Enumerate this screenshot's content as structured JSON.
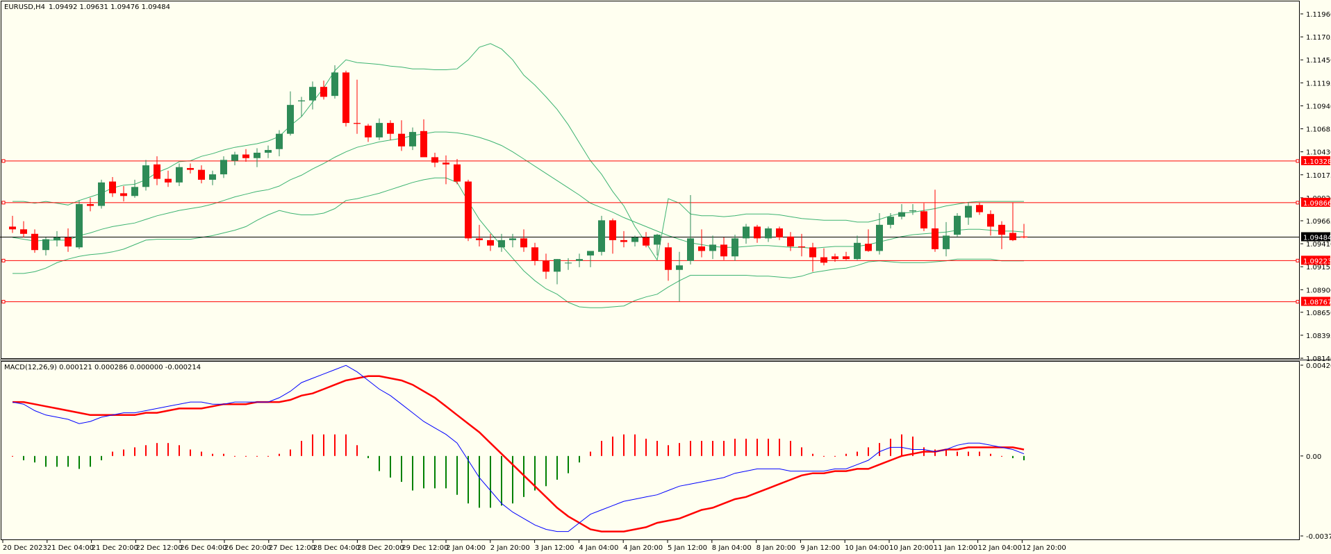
{
  "chart_data": [
    {
      "type": "candlestick",
      "symbol": "EURUSD,H4",
      "title": "EURUSD,H4",
      "ohlc_header": [
        "1.09492",
        "1.09631",
        "1.09476",
        "1.09484"
      ],
      "y_ticks": [
        "1.11960",
        "1.11705",
        "1.11450",
        "1.11195",
        "1.10940",
        "1.10685",
        "1.10430",
        "1.10175",
        "1.09920",
        "1.09665",
        "1.09410",
        "1.09155",
        "1.08900",
        "1.08650",
        "1.08395",
        "1.08140"
      ],
      "ylim": [
        1.0814,
        1.1196
      ],
      "current_price": "1.09484",
      "current_value": 1.09484,
      "horizontal_levels": [
        {
          "label": "1.10328",
          "value": 1.10328
        },
        {
          "label": "1.09866",
          "value": 1.09866
        },
        {
          "label": "1.09223",
          "value": 1.09223
        },
        {
          "label": "1.08767",
          "value": 1.08767
        }
      ],
      "x_ticks": [
        "20 Dec 2023",
        "21 Dec 04:00",
        "21 Dec 20:00",
        "22 Dec 12:00",
        "26 Dec 04:00",
        "26 Dec 20:00",
        "27 Dec 12:00",
        "28 Dec 04:00",
        "28 Dec 20:00",
        "29 Dec 12:00",
        "2 Jan 04:00",
        "2 Jan 20:00",
        "3 Jan 12:00",
        "4 Jan 04:00",
        "4 Jan 20:00",
        "5 Jan 12:00",
        "8 Jan 04:00",
        "8 Jan 20:00",
        "9 Jan 12:00",
        "10 Jan 04:00",
        "10 Jan 20:00",
        "11 Jan 12:00",
        "12 Jan 04:00",
        "12 Jan 20:00"
      ],
      "candles": [
        [
          1.096,
          1.0972,
          1.0953,
          1.0957
        ],
        [
          1.0957,
          1.0966,
          1.0948,
          1.0952
        ],
        [
          1.0952,
          1.0957,
          1.0931,
          1.0934
        ],
        [
          1.0934,
          1.0948,
          1.0928,
          1.0946
        ],
        [
          1.0945,
          1.0955,
          1.0938,
          1.0948
        ],
        [
          1.0948,
          1.0958,
          1.0932,
          1.0938
        ],
        [
          1.0937,
          1.0989,
          1.0935,
          1.0985
        ],
        [
          1.0985,
          1.0992,
          1.0977,
          1.0983
        ],
        [
          1.0983,
          1.1012,
          1.098,
          1.1009
        ],
        [
          1.101,
          1.1015,
          1.0993,
          1.0997
        ],
        [
          1.0997,
          1.1005,
          1.0988,
          1.0994
        ],
        [
          1.0994,
          1.1012,
          1.0992,
          1.1004
        ],
        [
          1.1004,
          1.1034,
          1.1,
          1.1028
        ],
        [
          1.1029,
          1.1038,
          1.1006,
          1.1013
        ],
        [
          1.1013,
          1.1022,
          1.1004,
          1.1009
        ],
        [
          1.1009,
          1.103,
          1.1005,
          1.1026
        ],
        [
          1.1025,
          1.103,
          1.1019,
          1.1023
        ],
        [
          1.1023,
          1.1028,
          1.1008,
          1.1012
        ],
        [
          1.1012,
          1.1022,
          1.1006,
          1.1018
        ],
        [
          1.1018,
          1.1038,
          1.1014,
          1.1034
        ],
        [
          1.1033,
          1.1043,
          1.1028,
          1.104
        ],
        [
          1.104,
          1.1046,
          1.1032,
          1.1036
        ],
        [
          1.1036,
          1.1047,
          1.1026,
          1.1042
        ],
        [
          1.1042,
          1.105,
          1.1036,
          1.1045
        ],
        [
          1.1046,
          1.1067,
          1.1038,
          1.1063
        ],
        [
          1.1063,
          1.111,
          1.1061,
          1.1095
        ],
        [
          1.1099,
          1.1104,
          1.1082,
          1.11
        ],
        [
          1.11,
          1.1121,
          1.109,
          1.1115
        ],
        [
          1.1115,
          1.1122,
          1.1101,
          1.1104
        ],
        [
          1.1105,
          1.1139,
          1.1102,
          1.1131
        ],
        [
          1.1131,
          1.1133,
          1.1071,
          1.1075
        ],
        [
          1.1075,
          1.1123,
          1.1063,
          1.1074
        ],
        [
          1.1072,
          1.1074,
          1.1054,
          1.1059
        ],
        [
          1.1059,
          1.108,
          1.1056,
          1.1075
        ],
        [
          1.1075,
          1.1078,
          1.1056,
          1.1063
        ],
        [
          1.1063,
          1.1078,
          1.1044,
          1.1049
        ],
        [
          1.1049,
          1.107,
          1.1045,
          1.1065
        ],
        [
          1.1066,
          1.1079,
          1.104,
          1.1037
        ],
        [
          1.1037,
          1.1042,
          1.1026,
          1.1031
        ],
        [
          1.1031,
          1.1039,
          1.1007,
          1.1029
        ],
        [
          1.1029,
          1.1035,
          1.1007,
          1.101
        ],
        [
          1.101,
          1.1012,
          1.0944,
          1.0947
        ],
        [
          1.0947,
          1.0962,
          1.0938,
          1.0945
        ],
        [
          1.0945,
          1.0952,
          1.0933,
          1.0939
        ],
        [
          1.0937,
          1.0952,
          1.0932,
          1.0945
        ],
        [
          1.0945,
          1.0952,
          1.0937,
          1.0947
        ],
        [
          1.0947,
          1.0957,
          1.0932,
          1.0937
        ],
        [
          1.0937,
          1.0942,
          1.0917,
          1.0922
        ],
        [
          1.0922,
          1.093,
          1.0902,
          1.091
        ],
        [
          1.091,
          1.0924,
          1.0896,
          1.0924
        ],
        [
          1.092,
          1.0925,
          1.0912,
          1.092
        ],
        [
          1.0922,
          1.093,
          1.0915,
          1.0924
        ],
        [
          1.0928,
          1.0932,
          1.0915,
          1.0933
        ],
        [
          1.0932,
          1.0972,
          1.0928,
          1.0967
        ],
        [
          1.0967,
          1.0969,
          1.093,
          1.0945
        ],
        [
          1.0945,
          1.0955,
          1.0937,
          1.0943
        ],
        [
          1.0943,
          1.095,
          1.0938,
          1.0948
        ],
        [
          1.0948,
          1.0954,
          1.0937,
          1.0939
        ],
        [
          1.094,
          1.0952,
          1.0928,
          1.0951
        ],
        [
          1.0937,
          1.0942,
          1.09,
          1.0912
        ],
        [
          1.0912,
          1.0932,
          1.0877,
          1.0917
        ],
        [
          1.0922,
          1.0995,
          1.0918,
          1.0947
        ],
        [
          1.0938,
          1.0957,
          1.0926,
          1.0933
        ],
        [
          1.0933,
          1.095,
          1.0924,
          1.094
        ],
        [
          1.094,
          1.0948,
          1.0923,
          1.0927
        ],
        [
          1.0927,
          1.0951,
          1.0922,
          1.0947
        ],
        [
          1.0947,
          1.0963,
          1.0941,
          1.096
        ],
        [
          1.096,
          1.0962,
          1.0942,
          1.0947
        ],
        [
          1.0947,
          1.096,
          1.0943,
          1.0958
        ],
        [
          1.0958,
          1.096,
          1.0945,
          1.0948
        ],
        [
          1.0949,
          1.0954,
          1.0933,
          1.0938
        ],
        [
          1.0938,
          1.0952,
          1.0927,
          1.0937
        ],
        [
          1.0937,
          1.0942,
          1.091,
          1.0926
        ],
        [
          1.0926,
          1.0936,
          1.0917,
          1.092
        ],
        [
          1.0927,
          1.093,
          1.0921,
          1.0924
        ],
        [
          1.0927,
          1.0932,
          1.0923,
          1.0924
        ],
        [
          1.0924,
          1.095,
          1.0923,
          1.0942
        ],
        [
          1.0941,
          1.0957,
          1.0932,
          1.0933
        ],
        [
          1.0933,
          1.0975,
          1.0929,
          1.0962
        ],
        [
          1.0962,
          1.0975,
          1.0958,
          1.0971
        ],
        [
          1.0971,
          1.0985,
          1.0968,
          1.0976
        ],
        [
          1.0977,
          1.0985,
          1.0973,
          1.0978
        ],
        [
          1.0977,
          1.0986,
          1.0955,
          1.0958
        ],
        [
          1.0958,
          1.1001,
          1.0932,
          1.0935
        ],
        [
          1.0935,
          1.0965,
          1.0927,
          1.095
        ],
        [
          1.0951,
          1.0975,
          1.0949,
          1.0972
        ],
        [
          1.097,
          1.0987,
          1.0962,
          1.0983
        ],
        [
          1.0984,
          1.0987,
          1.0973,
          1.0976
        ],
        [
          1.0974,
          1.0978,
          1.095,
          1.096
        ],
        [
          1.0962,
          1.0966,
          1.0935,
          1.0951
        ],
        [
          1.0953,
          1.0987,
          1.0944,
          1.0945
        ],
        [
          1.0949,
          1.0963,
          1.0947,
          1.0948
        ]
      ],
      "bollinger": {
        "upper": [
          1.0988,
          1.0988,
          1.0986,
          1.0988,
          1.0986,
          1.0984,
          1.0989,
          1.0993,
          1.0997,
          1.1003,
          1.1006,
          1.1007,
          1.1012,
          1.102,
          1.1025,
          1.1032,
          1.1033,
          1.1038,
          1.1041,
          1.1045,
          1.1048,
          1.105,
          1.1052,
          1.1055,
          1.106,
          1.1072,
          1.1082,
          1.1098,
          1.1114,
          1.1133,
          1.1145,
          1.1142,
          1.1141,
          1.114,
          1.1138,
          1.1137,
          1.1135,
          1.1135,
          1.1134,
          1.1134,
          1.1135,
          1.1145,
          1.1159,
          1.1163,
          1.1157,
          1.1145,
          1.1128,
          1.1117,
          1.1104,
          1.109,
          1.1073,
          1.1053,
          1.1033,
          1.1018,
          1.0999,
          1.0983,
          1.096,
          1.0942,
          1.0923,
          1.0991,
          1.0986,
          1.0974,
          1.0972,
          1.0972,
          1.0971,
          1.0972,
          1.0974,
          1.0974,
          1.0974,
          1.0973,
          1.0971,
          1.0969,
          1.0968,
          1.0967,
          1.0967,
          1.0967,
          1.0965,
          1.0965,
          1.0968,
          1.0972,
          1.0975,
          1.0976,
          1.0978,
          1.098,
          1.0983,
          1.0985,
          1.0987,
          1.0988,
          1.0988,
          1.0988,
          1.0988,
          1.0988
        ],
        "middle": [
          1.0948,
          1.0946,
          1.0944,
          1.0945,
          1.0945,
          1.0945,
          1.095,
          1.0953,
          1.0957,
          1.096,
          1.0962,
          1.0964,
          1.0968,
          1.0972,
          1.0975,
          1.0978,
          1.098,
          1.0982,
          1.0985,
          1.0989,
          1.0993,
          1.0996,
          1.0999,
          1.1001,
          1.1005,
          1.1012,
          1.1017,
          1.1024,
          1.103,
          1.1037,
          1.1043,
          1.1048,
          1.1051,
          1.1054,
          1.1056,
          1.1058,
          1.1061,
          1.1063,
          1.1065,
          1.1065,
          1.1064,
          1.1062,
          1.1059,
          1.1055,
          1.105,
          1.1043,
          1.1035,
          1.1027,
          1.1019,
          1.1011,
          1.1003,
          1.0995,
          1.0986,
          1.0981,
          1.0976,
          1.097,
          1.0965,
          1.096,
          1.0955,
          1.095,
          1.0946,
          1.0942,
          1.094,
          1.0938,
          1.0937,
          1.0937,
          1.0938,
          1.0939,
          1.0939,
          1.0938,
          1.0937,
          1.0937,
          1.0936,
          1.0937,
          1.0938,
          1.0938,
          1.0938,
          1.094,
          1.0943,
          1.0946,
          1.0949,
          1.0951,
          1.0952,
          1.0953,
          1.0954,
          1.0956,
          1.0957,
          1.0957,
          1.0956,
          1.0955,
          1.0955,
          1.0954
        ],
        "lower": [
          1.0908,
          1.0908,
          1.091,
          1.0914,
          1.092,
          1.0924,
          1.0927,
          1.0929,
          1.093,
          1.0932,
          1.0935,
          1.094,
          1.0945,
          1.0946,
          1.0946,
          1.0946,
          1.0946,
          1.0948,
          1.095,
          1.0953,
          1.0956,
          1.096,
          1.0967,
          1.0973,
          1.0978,
          1.0975,
          1.0973,
          1.0973,
          1.0975,
          1.098,
          1.0989,
          1.0991,
          1.0994,
          1.0997,
          1.1001,
          1.1005,
          1.1009,
          1.1012,
          1.1014,
          1.1014,
          1.1009,
          1.0988,
          1.0968,
          1.0953,
          1.0939,
          1.0925,
          1.0911,
          1.09,
          1.0891,
          1.0885,
          1.0876,
          1.0871,
          1.087,
          1.087,
          1.0871,
          1.0872,
          1.0878,
          1.0882,
          1.0885,
          1.0893,
          1.09,
          1.0906,
          1.0906,
          1.0906,
          1.0906,
          1.0906,
          1.0906,
          1.0905,
          1.0905,
          1.0904,
          1.0903,
          1.0905,
          1.0909,
          1.0911,
          1.0913,
          1.0914,
          1.0917,
          1.0921,
          1.0922,
          1.0921,
          1.092,
          1.092,
          1.092,
          1.0921,
          1.0922,
          1.0924,
          1.0924,
          1.0924,
          1.0924,
          1.0922,
          1.0922,
          1.0922
        ]
      }
    },
    {
      "type": "macd",
      "title": "MACD(12,26,9) 0.000121 0.000286 0.000000 -0.000214",
      "y_ticks": [
        "0.004209",
        "0.00",
        "-0.003707"
      ],
      "ylim": [
        -0.003707,
        0.004209
      ],
      "macd": [
        0.0025,
        0.0024,
        0.0021,
        0.0019,
        0.0018,
        0.0017,
        0.0015,
        0.0016,
        0.0018,
        0.0019,
        0.002,
        0.002,
        0.0021,
        0.0022,
        0.0023,
        0.0024,
        0.0025,
        0.0025,
        0.0024,
        0.0024,
        0.0025,
        0.0025,
        0.0025,
        0.0025,
        0.0027,
        0.003,
        0.0034,
        0.0036,
        0.0038,
        0.004,
        0.0042,
        0.0039,
        0.0035,
        0.0031,
        0.0028,
        0.0024,
        0.002,
        0.0016,
        0.0013,
        0.001,
        0.0006,
        -0.0002,
        -0.001,
        -0.0016,
        -0.0022,
        -0.0026,
        -0.0029,
        -0.0032,
        -0.0034,
        -0.0035,
        -0.0035,
        -0.0031,
        -0.0027,
        -0.0025,
        -0.0023,
        -0.0021,
        -0.002,
        -0.0019,
        -0.0018,
        -0.0016,
        -0.0014,
        -0.0013,
        -0.0012,
        -0.0011,
        -0.001,
        -0.0008,
        -0.0007,
        -0.0006,
        -0.0006,
        -0.0006,
        -0.0007,
        -0.0007,
        -0.0007,
        -0.0007,
        -0.0006,
        -0.0006,
        -0.0004,
        -0.0002,
        0.0002,
        0.0004,
        0.0004,
        0.0003,
        0.0003,
        0.0002,
        0.0003,
        0.0005,
        0.0006,
        0.0006,
        0.0005,
        0.0004,
        0.0003,
        0.0001
      ],
      "signal": [
        0.0025,
        0.0025,
        0.0024,
        0.0023,
        0.0022,
        0.0021,
        0.002,
        0.0019,
        0.0019,
        0.0019,
        0.0019,
        0.0019,
        0.002,
        0.002,
        0.0021,
        0.0022,
        0.0022,
        0.0022,
        0.0023,
        0.0024,
        0.0024,
        0.0024,
        0.0025,
        0.0025,
        0.0025,
        0.0026,
        0.0028,
        0.0029,
        0.0031,
        0.0033,
        0.0035,
        0.0036,
        0.0037,
        0.0037,
        0.0036,
        0.0035,
        0.0033,
        0.003,
        0.0027,
        0.0023,
        0.0019,
        0.0015,
        0.0011,
        0.0006,
        0.0001,
        -0.0004,
        -0.0009,
        -0.0014,
        -0.0019,
        -0.0024,
        -0.0028,
        -0.0031,
        -0.0034,
        -0.0035,
        -0.0035,
        -0.0035,
        -0.0034,
        -0.0033,
        -0.0031,
        -0.003,
        -0.0029,
        -0.0027,
        -0.0025,
        -0.0024,
        -0.0022,
        -0.002,
        -0.0019,
        -0.0017,
        -0.0015,
        -0.0013,
        -0.0011,
        -0.0009,
        -0.0008,
        -0.0008,
        -0.0007,
        -0.0007,
        -0.0006,
        -0.0006,
        -0.0004,
        -0.0002,
        0.0,
        0.0001,
        0.0002,
        0.0002,
        0.0003,
        0.0003,
        0.0004,
        0.0004,
        0.0004,
        0.0004,
        0.0004,
        0.0003
      ],
      "histogram": [
        0.0,
        -0.0002,
        -0.0003,
        -0.0005,
        -0.0005,
        -0.0005,
        -0.0006,
        -0.0005,
        -0.0002,
        0.0002,
        0.0003,
        0.0004,
        0.0005,
        0.0006,
        0.0006,
        0.0005,
        0.0003,
        0.0002,
        0.0001,
        0.0001,
        0.0,
        0.0,
        0.0,
        0.0,
        0.0001,
        0.0003,
        0.0007,
        0.001,
        0.001,
        0.001,
        0.001,
        0.0005,
        -0.0001,
        -0.0007,
        -0.001,
        -0.0012,
        -0.0016,
        -0.0015,
        -0.0015,
        -0.0015,
        -0.0018,
        -0.0022,
        -0.0024,
        -0.0024,
        -0.0023,
        -0.0022,
        -0.0019,
        -0.0016,
        -0.0014,
        -0.0011,
        -0.0008,
        -0.0003,
        0.0002,
        0.0007,
        0.0009,
        0.001,
        0.001,
        0.0008,
        0.0007,
        0.0005,
        0.0006,
        0.0007,
        0.0007,
        0.0007,
        0.0007,
        0.0008,
        0.0008,
        0.0008,
        0.0008,
        0.0008,
        0.0007,
        0.0004,
        0.0001,
        0.0,
        0.0,
        0.0001,
        0.0002,
        0.0004,
        0.0006,
        0.0008,
        0.001,
        0.0009,
        0.0004,
        0.0003,
        0.0003,
        0.0002,
        0.0002,
        0.0002,
        0.0001,
        0.0,
        -0.0001,
        -0.0002
      ]
    }
  ]
}
